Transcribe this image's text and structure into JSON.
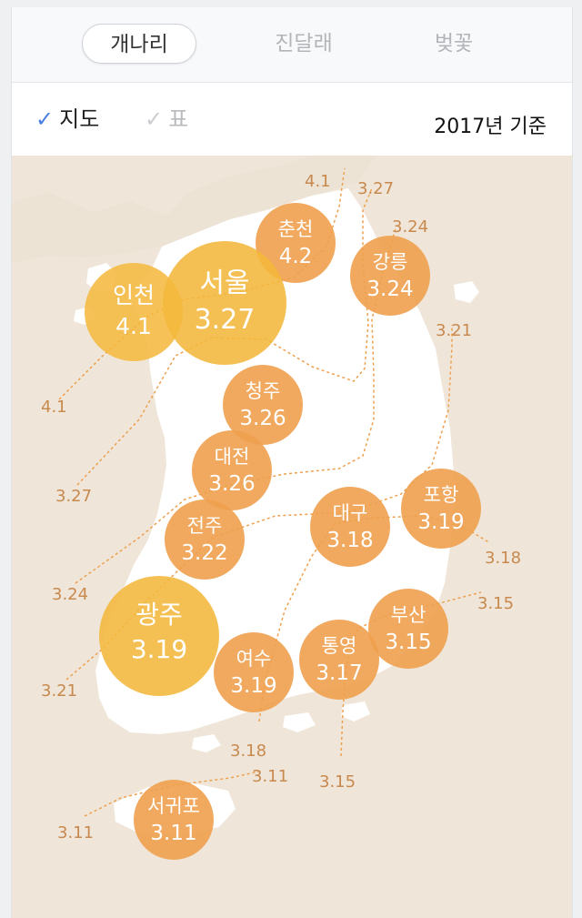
{
  "tabs": [
    {
      "label": "개나리",
      "active": true
    },
    {
      "label": "진달래",
      "active": false
    },
    {
      "label": "벚꽃",
      "active": false
    }
  ],
  "view_options": [
    {
      "label": "지도",
      "checked": true
    },
    {
      "label": "표",
      "checked": false
    }
  ],
  "basis_text": "2017년 기준",
  "colors": {
    "sea": "#efe6d9",
    "land": "#ffffff",
    "bubble": "#eea04e",
    "bubble_large": "#f4b73b",
    "isoline": "#eea04e",
    "isoline_label": "#c8894e",
    "checked": "#4a7fe0"
  },
  "cities": [
    {
      "name": "춘천",
      "value": "4.2"
    },
    {
      "name": "강릉",
      "value": "3.24"
    },
    {
      "name": "인천",
      "value": "4.1"
    },
    {
      "name": "서울",
      "value": "3.27"
    },
    {
      "name": "청주",
      "value": "3.26"
    },
    {
      "name": "대전",
      "value": "3.26"
    },
    {
      "name": "포항",
      "value": "3.19"
    },
    {
      "name": "대구",
      "value": "3.18"
    },
    {
      "name": "전주",
      "value": "3.22"
    },
    {
      "name": "부산",
      "value": "3.15"
    },
    {
      "name": "광주",
      "value": "3.19"
    },
    {
      "name": "통영",
      "value": "3.17"
    },
    {
      "name": "여수",
      "value": "3.19"
    },
    {
      "name": "서귀포",
      "value": "3.11"
    }
  ],
  "isolines": [
    "4.1",
    "3.27",
    "3.24",
    "3.21",
    "3.18",
    "3.15",
    "3.11"
  ]
}
